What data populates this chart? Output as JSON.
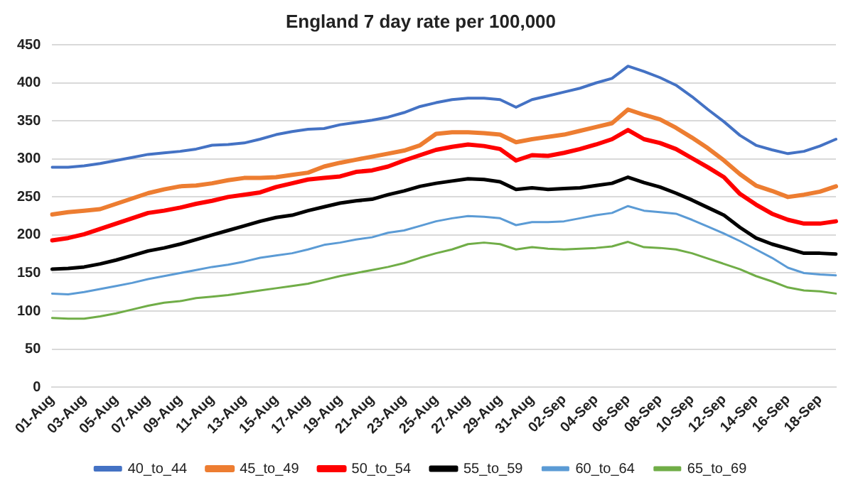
{
  "chart_data": {
    "type": "line",
    "title": "England 7 day rate per 100,000",
    "categories": [
      "01-Aug",
      null,
      "03-Aug",
      null,
      "05-Aug",
      null,
      "07-Aug",
      null,
      "09-Aug",
      null,
      "11-Aug",
      null,
      "13-Aug",
      null,
      "15-Aug",
      null,
      "17-Aug",
      null,
      "19-Aug",
      null,
      "21-Aug",
      null,
      "23-Aug",
      null,
      "25-Aug",
      null,
      "27-Aug",
      null,
      "29-Aug",
      null,
      "31-Aug",
      null,
      "02-Sep",
      null,
      "04-Sep",
      null,
      "06-Sep",
      null,
      "08-Sep",
      null,
      "10-Sep",
      null,
      "12-Sep",
      null,
      "14-Sep",
      null,
      "16-Sep",
      null,
      "18-Sep",
      null
    ],
    "series": [
      {
        "name": "40_to_44",
        "color": "#4472c4",
        "values": [
          289,
          289,
          291,
          294,
          298,
          302,
          306,
          308,
          310,
          313,
          318,
          319,
          321,
          326,
          332,
          336,
          339,
          340,
          345,
          348,
          351,
          355,
          361,
          369,
          374,
          378,
          380,
          380,
          378,
          368,
          378,
          383,
          388,
          393,
          400,
          406,
          422,
          415,
          407,
          397,
          382,
          365,
          349,
          331,
          318,
          312,
          307,
          310,
          317,
          326
        ]
      },
      {
        "name": "45_to_49",
        "color": "#ed7d31",
        "values": [
          227,
          230,
          232,
          234,
          241,
          248,
          255,
          260,
          264,
          265,
          268,
          272,
          275,
          275,
          276,
          279,
          282,
          290,
          295,
          299,
          303,
          307,
          311,
          318,
          333,
          335,
          335,
          334,
          332,
          322,
          326,
          329,
          332,
          337,
          342,
          347,
          365,
          358,
          352,
          341,
          328,
          314,
          298,
          280,
          265,
          258,
          250,
          253,
          257,
          264
        ]
      },
      {
        "name": "50_to_54",
        "color": "#ff0000",
        "values": [
          193,
          196,
          201,
          208,
          215,
          222,
          229,
          232,
          236,
          241,
          245,
          250,
          253,
          256,
          263,
          268,
          273,
          275,
          277,
          283,
          285,
          290,
          298,
          305,
          312,
          316,
          319,
          317,
          313,
          298,
          305,
          304,
          308,
          313,
          319,
          326,
          338,
          326,
          321,
          313,
          301,
          289,
          276,
          254,
          240,
          228,
          220,
          215,
          215,
          218
        ]
      },
      {
        "name": "55_to_59",
        "color": "#000000",
        "values": [
          155,
          156,
          158,
          162,
          167,
          173,
          179,
          183,
          188,
          194,
          200,
          206,
          212,
          218,
          223,
          226,
          232,
          237,
          242,
          245,
          247,
          253,
          258,
          264,
          268,
          271,
          274,
          273,
          270,
          260,
          262,
          260,
          261,
          262,
          265,
          268,
          276,
          269,
          263,
          255,
          246,
          236,
          226,
          210,
          196,
          188,
          182,
          176,
          176,
          175
        ]
      },
      {
        "name": "60_to_64",
        "color": "#5b9bd5",
        "values": [
          123,
          122,
          125,
          129,
          133,
          137,
          142,
          146,
          150,
          154,
          158,
          161,
          165,
          170,
          173,
          176,
          181,
          187,
          190,
          194,
          197,
          203,
          206,
          212,
          218,
          222,
          225,
          224,
          222,
          213,
          217,
          217,
          218,
          222,
          226,
          229,
          238,
          232,
          230,
          228,
          220,
          211,
          202,
          192,
          181,
          170,
          157,
          150,
          148,
          147
        ]
      },
      {
        "name": "65_to_69",
        "color": "#70ad47",
        "values": [
          91,
          90,
          90,
          93,
          97,
          102,
          107,
          111,
          113,
          117,
          119,
          121,
          124,
          127,
          130,
          133,
          136,
          141,
          146,
          150,
          154,
          158,
          163,
          170,
          176,
          181,
          188,
          190,
          188,
          181,
          184,
          182,
          181,
          182,
          183,
          185,
          191,
          184,
          183,
          181,
          176,
          169,
          162,
          155,
          146,
          139,
          131,
          127,
          126,
          123
        ]
      }
    ],
    "ylim": [
      0,
      450
    ],
    "yticks": [
      0,
      50,
      100,
      150,
      200,
      250,
      300,
      350,
      400,
      450
    ],
    "grid": "y",
    "legend": "bottom",
    "marker": "none",
    "line_style": "solid"
  }
}
